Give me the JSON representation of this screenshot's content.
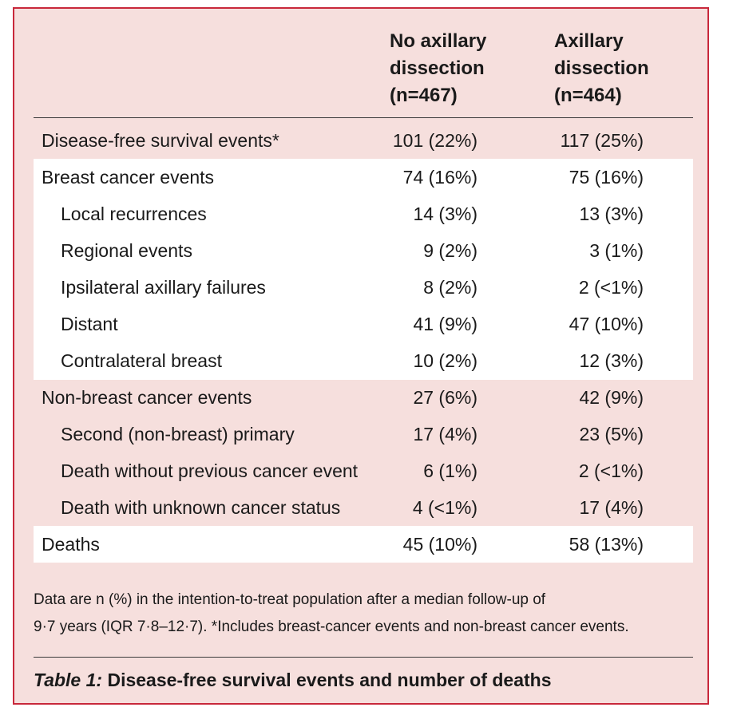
{
  "columns": {
    "col1": {
      "line1": "No axillary",
      "line2": "dissection",
      "line3": "(n=467)"
    },
    "col2": {
      "line1": "Axillary",
      "line2": "dissection",
      "line3": "(n=464)"
    }
  },
  "rows": [
    {
      "label": "Disease-free survival events*",
      "v1": "101 (22%)",
      "v2": "117 (25%)"
    },
    {
      "label": "Breast cancer events",
      "v1": "74 (16%)",
      "v2": "75 (16%)"
    },
    {
      "label": "Local recurrences",
      "v1": "14 (3%)",
      "v2": "13 (3%)"
    },
    {
      "label": "Regional events",
      "v1": "9 (2%)",
      "v2": "3 (1%)"
    },
    {
      "label": "Ipsilateral axillary failures",
      "v1": "8 (2%)",
      "v2": "2 (<1%)"
    },
    {
      "label": "Distant",
      "v1": "41 (9%)",
      "v2": "47 (10%)"
    },
    {
      "label": "Contralateral breast",
      "v1": "10 (2%)",
      "v2": "12 (3%)"
    },
    {
      "label": "Non-breast cancer events",
      "v1": "27 (6%)",
      "v2": "42 (9%)"
    },
    {
      "label": "Second (non-breast) primary",
      "v1": "17 (4%)",
      "v2": "23 (5%)"
    },
    {
      "label": "Death without previous cancer event",
      "v1": "6 (1%)",
      "v2": "2 (<1%)"
    },
    {
      "label": "Death with unknown cancer status",
      "v1": "4 (<1%)",
      "v2": "17 (4%)"
    },
    {
      "label": "Deaths",
      "v1": "45 (10%)",
      "v2": "58 (13%)"
    }
  ],
  "footnote": {
    "line1": "Data are n (%) in the intention-to-treat population after a median follow-up of",
    "line2": "9·7 years (IQR 7·8–12·7). *Includes breast-cancer events and non-breast cancer events."
  },
  "caption": {
    "label": "Table 1:",
    "text": " Disease-free survival events and number of deaths"
  },
  "colors": {
    "border": "#c8283b",
    "panel": "#f6dfdd",
    "band": "#ffffff"
  }
}
